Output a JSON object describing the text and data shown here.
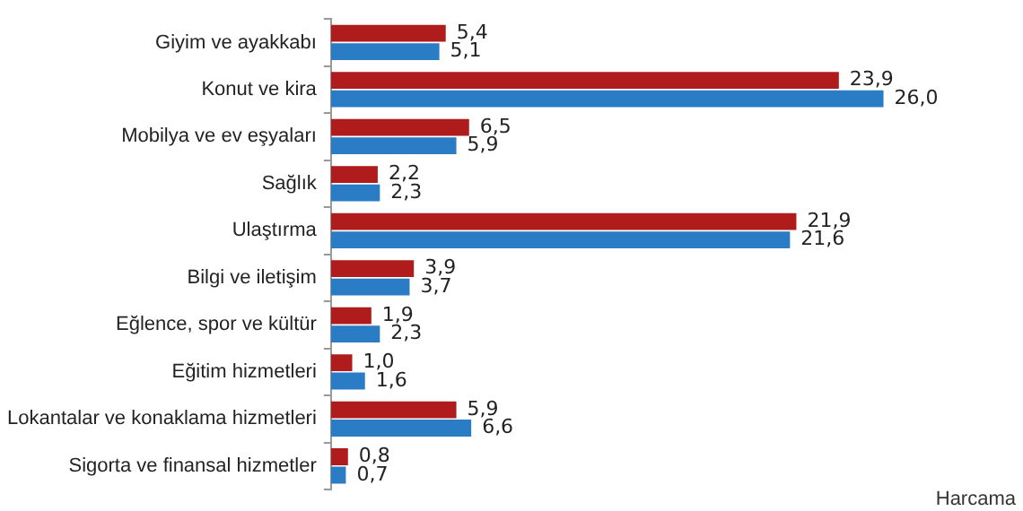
{
  "chart_data": {
    "type": "bar",
    "orientation": "horizontal",
    "grid": false,
    "legend": false,
    "categories": [
      "Giyim ve ayakkabı",
      "Konut ve kira",
      "Mobilya ve ev eşyaları",
      "Sağlık",
      "Ulaştırma",
      "Bilgi ve iletişim",
      "Eğlence, spor ve kültür",
      "Eğitim hizmetleri",
      "Lokantalar ve konaklama hizmetleri",
      "Sigorta ve finansal hizmetler"
    ],
    "series": [
      {
        "color": "#b01c1c",
        "values": [
          5.4,
          23.9,
          6.5,
          2.2,
          21.9,
          3.9,
          1.9,
          1.0,
          5.9,
          0.8
        ],
        "value_labels": [
          "5,4",
          "23,9",
          "6,5",
          "2,2",
          "21,9",
          "3,9",
          "1,9",
          "1,0",
          "5,9",
          "0,8"
        ]
      },
      {
        "color": "#2a7cc4",
        "values": [
          5.1,
          26.0,
          5.9,
          2.3,
          21.6,
          3.7,
          2.3,
          1.6,
          6.6,
          0.7
        ],
        "value_labels": [
          "5,1",
          "26,0",
          "5,9",
          "2,3",
          "21,6",
          "3,7",
          "2,3",
          "1,6",
          "6,6",
          "0,7"
        ]
      }
    ],
    "annotations": [
      "Harcama"
    ]
  }
}
